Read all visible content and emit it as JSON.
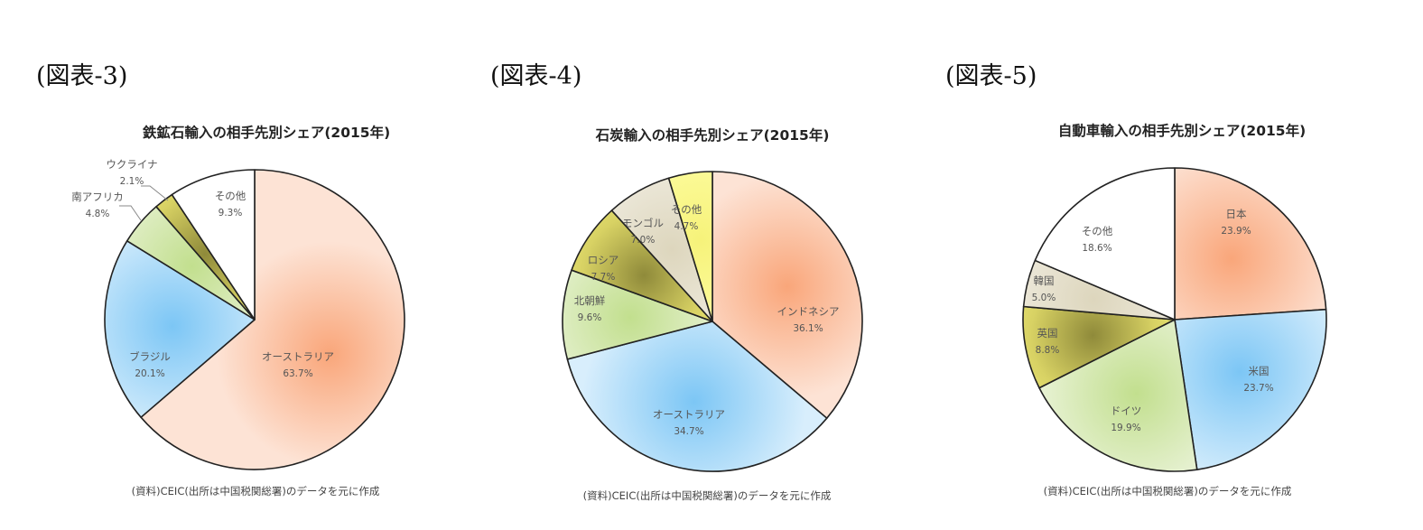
{
  "chart_data": [
    {
      "type": "pie",
      "figure_label": "(図表-3)",
      "title": "鉄鉱石輸入の相手先別シェア(2015年)",
      "source": "(資料)CEIC(出所は中国税関総署)のデータを元に作成",
      "start_angle": "12 o'clock",
      "direction": "clockwise",
      "categories": [
        "オーストラリア",
        "ブラジル",
        "南アフリカ",
        "ウクライナ",
        "その他"
      ],
      "values": [
        63.7,
        20.1,
        4.8,
        2.1,
        9.3
      ],
      "value_labels": [
        "63.7%",
        "20.1%",
        "4.8%",
        "2.1%",
        "9.3%"
      ],
      "colors": [
        "#f9a87c",
        "#7ec8f4",
        "#c9e29a",
        "#b9b54a",
        "#ffffff"
      ]
    },
    {
      "type": "pie",
      "figure_label": "(図表-4)",
      "title": "石炭輸入の相手先別シェア(2015年)",
      "source": "(資料)CEIC(出所は中国税関総署)のデータを元に作成",
      "start_angle": "12 o'clock",
      "direction": "clockwise",
      "categories": [
        "インドネシア",
        "オーストラリア",
        "北朝鮮",
        "ロシア",
        "モンゴル",
        "その他"
      ],
      "values": [
        36.1,
        34.7,
        9.6,
        7.7,
        7.0,
        4.7
      ],
      "value_labels": [
        "36.1%",
        "34.7%",
        "9.6%",
        "7.7%",
        "7.0%",
        "4.7%"
      ],
      "colors": [
        "#f9a87c",
        "#7ec8f4",
        "#c9e29a",
        "#b9b54a",
        "#e6e0cc",
        "#ffff88"
      ]
    },
    {
      "type": "pie",
      "figure_label": "(図表-5)",
      "title": "自動車輸入の相手先別シェア(2015年)",
      "source": "(資料)CEIC(出所は中国税関総署)のデータを元に作成",
      "start_angle": "12 o'clock",
      "direction": "clockwise",
      "categories": [
        "日本",
        "米国",
        "ドイツ",
        "英国",
        "韓国",
        "その他"
      ],
      "values": [
        23.9,
        23.7,
        19.9,
        8.8,
        5.0,
        18.6
      ],
      "value_labels": [
        "23.9%",
        "23.7%",
        "19.9%",
        "8.8%",
        "5.0%",
        "18.6%"
      ],
      "colors": [
        "#f9a87c",
        "#7ec8f4",
        "#c9e29a",
        "#b9b54a",
        "#e6e0cc",
        "#ffffff"
      ]
    }
  ],
  "panels": [
    {
      "figure_label": "(図表-3)",
      "title": "鉄鉱石輸入の相手先別シェア(2015年)",
      "source": "(資料)CEIC(出所は中国税関総署)のデータを元に作成"
    },
    {
      "figure_label": "(図表-4)",
      "title": "石炭輸入の相手先別シェア(2015年)",
      "source": "(資料)CEIC(出所は中国税関総署)のデータを元に作成"
    },
    {
      "figure_label": "(図表-5)",
      "title": "自動車輸入の相手先別シェア(2015年)",
      "source": "(資料)CEIC(出所は中国税関総署)のデータを元に作成"
    }
  ]
}
